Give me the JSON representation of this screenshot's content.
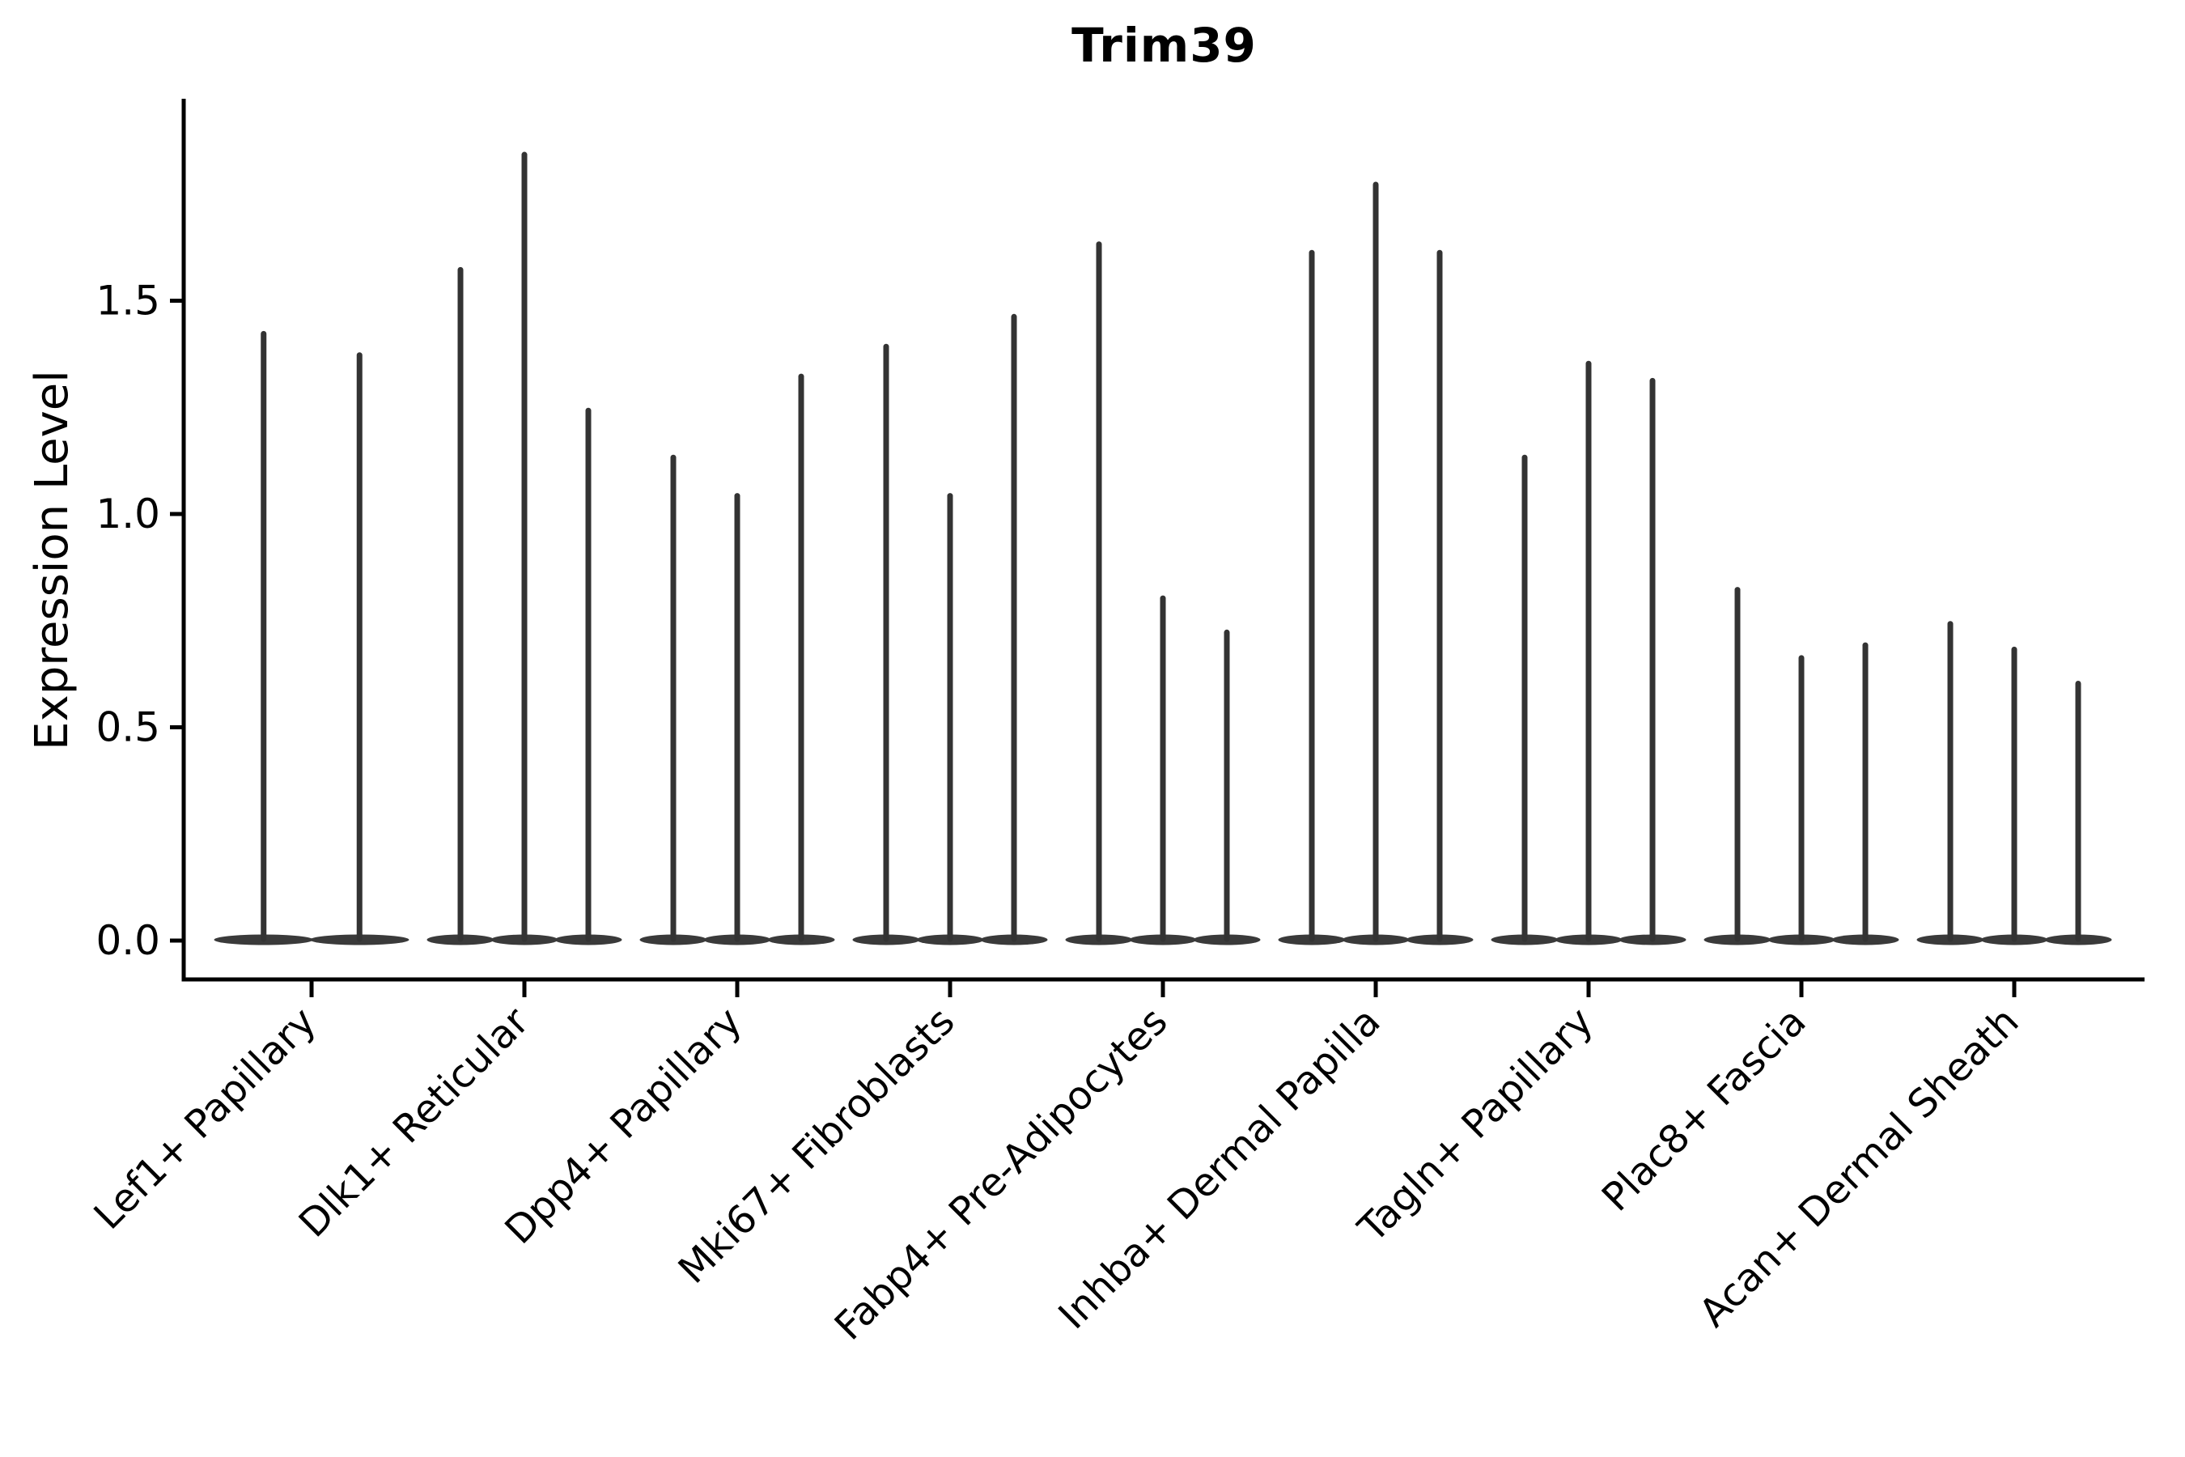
{
  "chart_data": {
    "type": "violin",
    "title": "Trim39",
    "ylabel": "Expression Level",
    "xlabel": "",
    "grid": false,
    "legend": "none",
    "yticks": [
      {
        "label": "0.0",
        "value": 0.0
      },
      {
        "label": "0.5",
        "value": 0.5
      },
      {
        "label": "1.0",
        "value": 1.0
      },
      {
        "label": "1.5",
        "value": 1.5
      }
    ],
    "ylim": [
      -0.09,
      1.97
    ],
    "baseline_value": 0.0,
    "categories": [
      "Lef1+ Papillary",
      "Dlk1+ Reticular",
      "Dpp4+ Papillary",
      "Mki67+ Fibroblasts",
      "Fabp4+ Pre-Adipocytes",
      "Inhba+ Dermal Papilla",
      "Tagln+ Papillary",
      "Plac8+ Fascia",
      "Acan+ Dermal Sheath"
    ],
    "groups": [
      {
        "label": "Lef1+ Papillary",
        "violin_maxima": [
          1.43,
          1.38
        ]
      },
      {
        "label": "Dlk1+ Reticular",
        "violin_maxima": [
          1.58,
          1.85,
          1.25
        ]
      },
      {
        "label": "Dpp4+ Papillary",
        "violin_maxima": [
          1.14,
          1.05,
          1.33
        ]
      },
      {
        "label": "Mki67+ Fibroblasts",
        "violin_maxima": [
          1.4,
          1.05,
          1.47
        ]
      },
      {
        "label": "Fabp4+ Pre-Adipocytes",
        "violin_maxima": [
          1.64,
          0.81,
          0.73
        ]
      },
      {
        "label": "Inhba+ Dermal Papilla",
        "violin_maxima": [
          1.62,
          1.78,
          1.62
        ]
      },
      {
        "label": "Tagln+ Papillary",
        "violin_maxima": [
          1.14,
          1.36,
          1.32
        ]
      },
      {
        "label": "Plac8+ Fascia",
        "violin_maxima": [
          0.83,
          0.67,
          0.7
        ]
      },
      {
        "label": "Acan+ Dermal Sheath",
        "violin_maxima": [
          0.75,
          0.69,
          0.61
        ]
      }
    ],
    "colors": {
      "violin_fill": "#3a3a3a",
      "spike_stroke": "#333333",
      "axis": "#000000",
      "text": "#000000",
      "background": "#ffffff"
    }
  }
}
